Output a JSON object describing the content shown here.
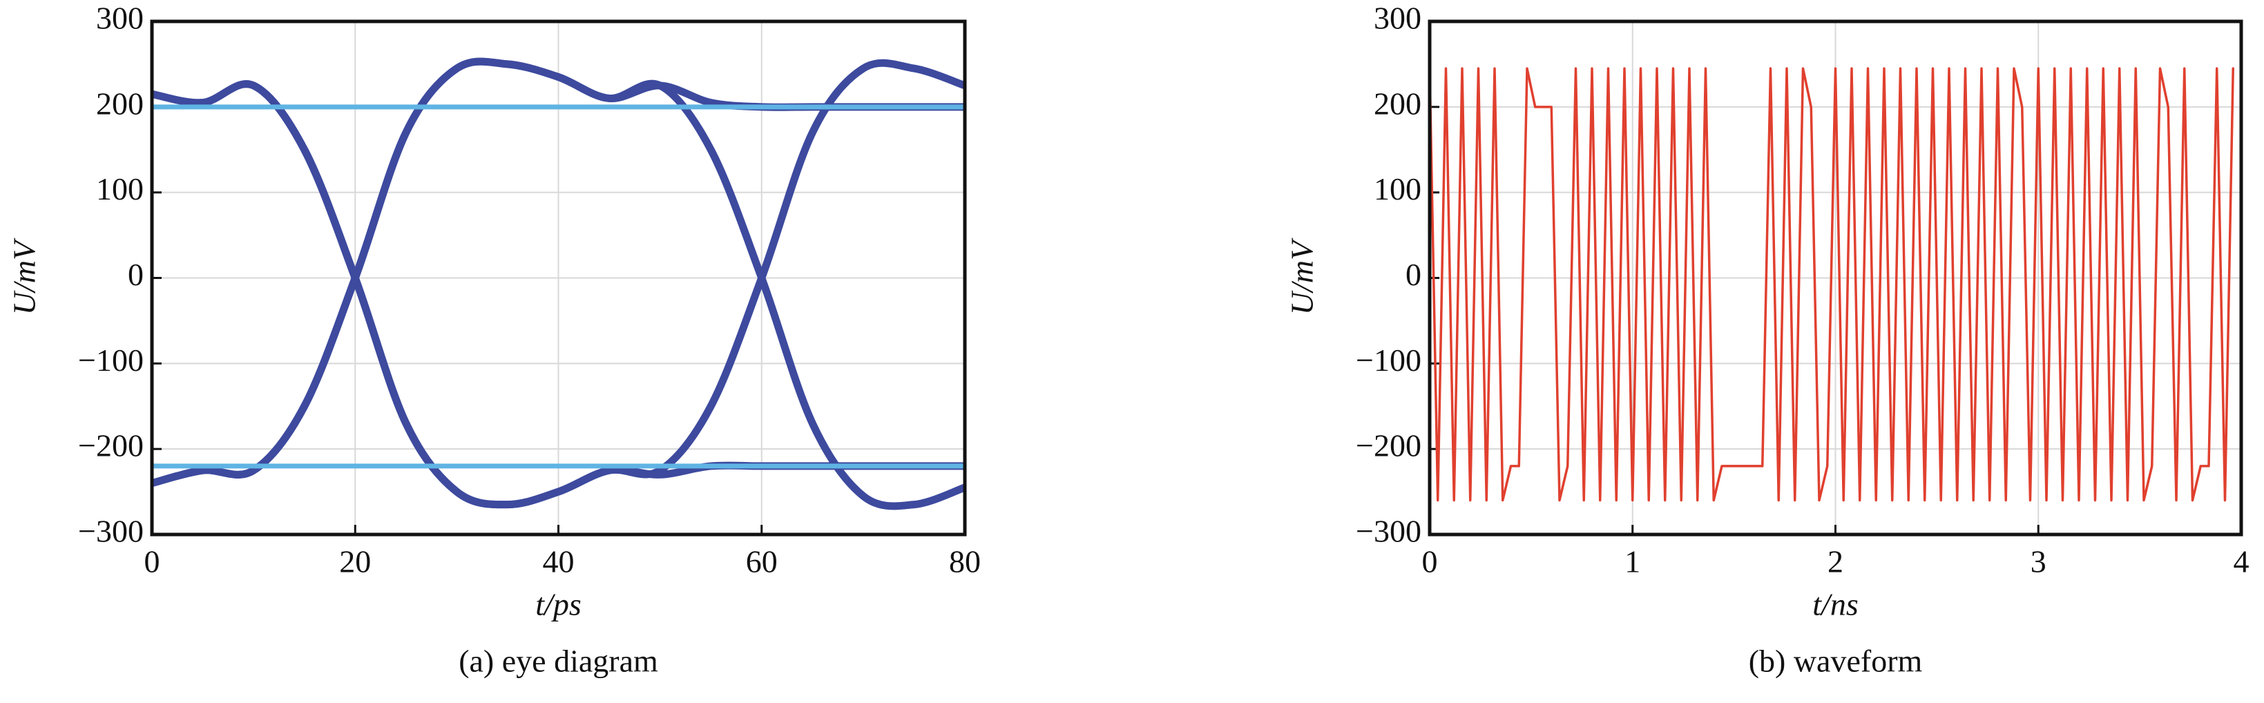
{
  "chart_data": [
    {
      "type": "line",
      "caption": "(a) eye diagram",
      "xlabel": "t/ps",
      "ylabel": "U/mV",
      "xlim": [
        0,
        80
      ],
      "ylim": [
        -300,
        300
      ],
      "xticks": [
        0,
        20,
        40,
        60,
        80
      ],
      "yticks": [
        {
          "value": -300,
          "label": "−300"
        },
        {
          "value": -200,
          "label": "−200"
        },
        {
          "value": -100,
          "label": "−100"
        },
        0,
        100,
        200,
        300
      ],
      "grid": true,
      "x": [
        0,
        5,
        10,
        15,
        20,
        25,
        30,
        35,
        40,
        45,
        50,
        55,
        60,
        65,
        70,
        75,
        80
      ],
      "series": [
        {
          "color": "#3d4a9e",
          "values": [
            215,
            205,
            225,
            150,
            0,
            -170,
            -250,
            -265,
            -250,
            -225,
            -225,
            -150,
            0,
            170,
            245,
            245,
            225
          ]
        },
        {
          "color": "#3d4a9e",
          "values": [
            -240,
            -225,
            -225,
            -150,
            0,
            170,
            245,
            250,
            235,
            210,
            225,
            150,
            0,
            -170,
            -255,
            -265,
            -245
          ]
        },
        {
          "color": "#3d4a9e",
          "values": [
            215,
            205,
            225,
            150,
            0,
            -170,
            -250,
            -265,
            -250,
            -225,
            -230,
            -220,
            -220,
            -220,
            -220,
            -220,
            -220
          ]
        },
        {
          "color": "#3d4a9e",
          "values": [
            -240,
            -225,
            -225,
            -150,
            0,
            170,
            245,
            250,
            235,
            210,
            225,
            205,
            200,
            200,
            200,
            200,
            200
          ]
        },
        {
          "color": "#5fb4e4",
          "values": [
            200,
            200,
            200,
            200,
            200,
            200,
            200,
            200,
            200,
            200,
            200,
            200,
            200,
            200,
            200,
            200,
            200
          ]
        },
        {
          "color": "#5fb4e4",
          "values": [
            -220,
            -220,
            -220,
            -220,
            -220,
            -220,
            -220,
            -220,
            -220,
            -220,
            -220,
            -220,
            -220,
            -220,
            -220,
            -220,
            -220
          ]
        }
      ]
    },
    {
      "type": "line",
      "caption": "(b) waveform",
      "xlabel": "t/ns",
      "ylabel": "U/mV",
      "xlim": [
        0,
        4
      ],
      "ylim": [
        -300,
        300
      ],
      "xticks": [
        0,
        1,
        2,
        3,
        4
      ],
      "yticks": [
        {
          "value": -300,
          "label": "−300"
        },
        {
          "value": -200,
          "label": "−200"
        },
        {
          "value": -100,
          "label": "−100"
        },
        0,
        100,
        200,
        300
      ],
      "grid": true,
      "x": [
        0,
        0.04,
        0.08,
        0.12,
        0.16,
        0.2,
        0.24,
        0.28,
        0.32,
        0.36,
        0.4,
        0.44,
        0.48,
        0.52,
        0.56,
        0.6,
        0.64,
        0.68,
        0.72,
        0.76,
        0.8,
        0.84,
        0.88,
        0.92,
        0.96,
        1,
        1.04,
        1.08,
        1.12,
        1.16,
        1.2,
        1.24,
        1.28,
        1.32,
        1.36,
        1.4,
        1.44,
        1.48,
        1.52,
        1.56,
        1.6,
        1.64,
        1.68,
        1.72,
        1.76,
        1.8,
        1.84,
        1.88,
        1.92,
        1.96,
        2,
        2.04,
        2.08,
        2.12,
        2.16,
        2.2,
        2.24,
        2.28,
        2.32,
        2.36,
        2.4,
        2.44,
        2.48,
        2.52,
        2.56,
        2.6,
        2.64,
        2.68,
        2.72,
        2.76,
        2.8,
        2.84,
        2.88,
        2.92,
        2.96,
        3,
        3.04,
        3.08,
        3.12,
        3.16,
        3.2,
        3.24,
        3.28,
        3.32,
        3.36,
        3.4,
        3.44,
        3.48,
        3.52,
        3.56,
        3.6,
        3.64,
        3.68,
        3.72,
        3.76,
        3.8,
        3.84,
        3.88,
        3.92,
        3.96
      ],
      "series": [
        {
          "color": "#e0402f",
          "values": [
            245,
            -260,
            245,
            -260,
            245,
            -260,
            245,
            -260,
            245,
            -260,
            -220,
            -220,
            245,
            200,
            200,
            200,
            -260,
            -220,
            245,
            -260,
            245,
            -260,
            245,
            -260,
            245,
            -260,
            245,
            -260,
            245,
            -260,
            245,
            -260,
            245,
            -260,
            245,
            -260,
            -220,
            -220,
            -220,
            -220,
            -220,
            -220,
            245,
            -260,
            245,
            -260,
            245,
            200,
            -260,
            -220,
            245,
            -260,
            245,
            -260,
            245,
            -260,
            245,
            -260,
            245,
            -260,
            245,
            -260,
            245,
            -260,
            245,
            -260,
            245,
            -260,
            245,
            -260,
            245,
            -260,
            245,
            200,
            -260,
            245,
            -260,
            245,
            -260,
            245,
            -260,
            245,
            -260,
            245,
            -260,
            245,
            -260,
            245,
            -260,
            -220,
            245,
            200,
            -260,
            245,
            -260,
            -220,
            -220,
            245,
            -260,
            245
          ]
        }
      ]
    }
  ]
}
